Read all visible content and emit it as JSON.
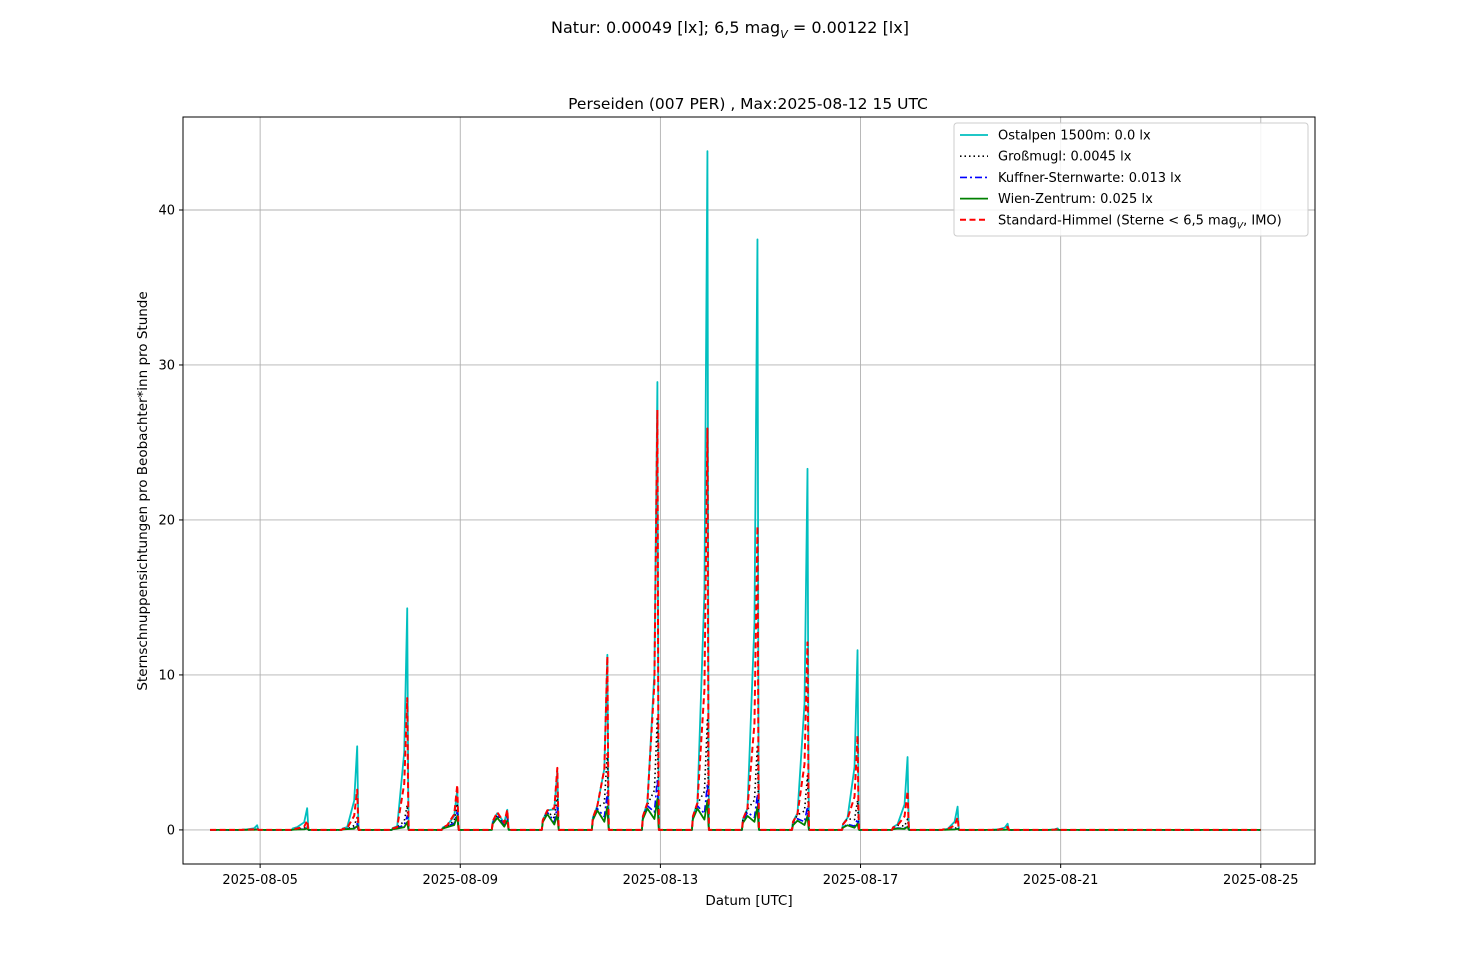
{
  "figure": {
    "suptitle": "Natur: 0.00049 [lx]; 6,5 mag",
    "suptitle_sub": "V",
    "suptitle_tail": " = 0.00122 [lx]"
  },
  "chart_data": {
    "type": "line",
    "title": "Perseiden (007 PER) , Max:2025-08-12 15 UTC",
    "xlabel": "Datum [UTC]",
    "ylabel": "Sternschnuppensichtungen pro Beobachter*inn pro Stunde",
    "x_start": "2025-08-04",
    "x_end": "2025-08-25",
    "xlim": [
      "2025-08-03 11:00",
      "2025-08-26 02:00"
    ],
    "ylim": [
      -2.2,
      46
    ],
    "xticks": [
      "2025-08-05",
      "2025-08-09",
      "2025-08-13",
      "2025-08-17",
      "2025-08-21",
      "2025-08-25"
    ],
    "yticks": [
      0,
      10,
      20,
      30,
      40
    ],
    "grid": true,
    "legend_position": "top-right",
    "series": [
      {
        "name": "Ostalpen 1500m: 0.0 lx",
        "color": "#00bfbf",
        "dash": "solid",
        "width": 1.8,
        "nights": [
          {
            "date": "2025-08-05",
            "peak": 0.3,
            "tail": 0.05
          },
          {
            "date": "2025-08-06",
            "peak": 1.4,
            "tail": 0.3
          },
          {
            "date": "2025-08-07",
            "peak": 5.4,
            "tail": 0.3
          },
          {
            "date": "2025-08-08",
            "peak": 14.3,
            "tail": 0.4
          },
          {
            "date": "2025-08-09",
            "peak": 2.6,
            "tail": 0.5
          },
          {
            "date": "2025-08-10",
            "peak": 1.3,
            "tail": 1.8
          },
          {
            "date": "2025-08-11",
            "peak": 3.8,
            "tail": 2.1
          },
          {
            "date": "2025-08-12",
            "peak": 11.3,
            "tail": 2.6
          },
          {
            "date": "2025-08-13",
            "peak": 28.9,
            "tail": 2.9
          },
          {
            "date": "2025-08-14",
            "peak": 43.8,
            "tail": 2.9
          },
          {
            "date": "2025-08-15",
            "peak": 38.1,
            "tail": 2.3
          },
          {
            "date": "2025-08-16",
            "peak": 23.3,
            "tail": 1.8
          },
          {
            "date": "2025-08-17",
            "peak": 11.6,
            "tail": 1.3
          },
          {
            "date": "2025-08-18",
            "peak": 4.7,
            "tail": 0.6
          },
          {
            "date": "2025-08-19",
            "peak": 1.5,
            "tail": 0.1
          },
          {
            "date": "2025-08-20",
            "peak": 0.4,
            "tail": 0.05
          },
          {
            "date": "2025-08-21",
            "peak": 0.1,
            "tail": 0.0
          }
        ]
      },
      {
        "name": "Großmugl: 0.0045 lx",
        "color": "#000000",
        "dash": "dotted",
        "width": 1.6,
        "nights": [
          {
            "date": "2025-08-05",
            "peak": 0.05,
            "tail": 0.02
          },
          {
            "date": "2025-08-06",
            "peak": 0.3,
            "tail": 0.1
          },
          {
            "date": "2025-08-07",
            "peak": 0.8,
            "tail": 0.1
          },
          {
            "date": "2025-08-08",
            "peak": 1.6,
            "tail": 0.3
          },
          {
            "date": "2025-08-09",
            "peak": 1.7,
            "tail": 0.4
          },
          {
            "date": "2025-08-10",
            "peak": 0.9,
            "tail": 1.6
          },
          {
            "date": "2025-08-11",
            "peak": 2.2,
            "tail": 2.0
          },
          {
            "date": "2025-08-12",
            "peak": 5.0,
            "tail": 2.4
          },
          {
            "date": "2025-08-13",
            "peak": 7.3,
            "tail": 2.7
          },
          {
            "date": "2025-08-14",
            "peak": 7.1,
            "tail": 2.8
          },
          {
            "date": "2025-08-15",
            "peak": 5.5,
            "tail": 2.2
          },
          {
            "date": "2025-08-16",
            "peak": 3.5,
            "tail": 1.6
          },
          {
            "date": "2025-08-17",
            "peak": 1.9,
            "tail": 1.2
          },
          {
            "date": "2025-08-18",
            "peak": 0.7,
            "tail": 0.5
          },
          {
            "date": "2025-08-19",
            "peak": 0.2,
            "tail": 0.05
          },
          {
            "date": "2025-08-20",
            "peak": 0.05,
            "tail": 0.0
          },
          {
            "date": "2025-08-21",
            "peak": 0.02,
            "tail": 0.0
          }
        ]
      },
      {
        "name": "Kuffner-Sternwarte: 0.013 lx",
        "color": "#0000ff",
        "dash": "dashdot",
        "width": 1.6,
        "nights": [
          {
            "date": "2025-08-05",
            "peak": 0.03,
            "tail": 0.01
          },
          {
            "date": "2025-08-06",
            "peak": 0.15,
            "tail": 0.05
          },
          {
            "date": "2025-08-07",
            "peak": 0.4,
            "tail": 0.1
          },
          {
            "date": "2025-08-08",
            "peak": 0.9,
            "tail": 0.2
          },
          {
            "date": "2025-08-09",
            "peak": 1.2,
            "tail": 0.4
          },
          {
            "date": "2025-08-10",
            "peak": 0.8,
            "tail": 1.5
          },
          {
            "date": "2025-08-11",
            "peak": 1.5,
            "tail": 1.9
          },
          {
            "date": "2025-08-12",
            "peak": 2.4,
            "tail": 2.3
          },
          {
            "date": "2025-08-13",
            "peak": 3.3,
            "tail": 2.6
          },
          {
            "date": "2025-08-14",
            "peak": 3.0,
            "tail": 2.6
          },
          {
            "date": "2025-08-15",
            "peak": 2.3,
            "tail": 1.9
          },
          {
            "date": "2025-08-16",
            "peak": 1.5,
            "tail": 1.2
          },
          {
            "date": "2025-08-17",
            "peak": 0.7,
            "tail": 0.6
          },
          {
            "date": "2025-08-18",
            "peak": 0.3,
            "tail": 0.2
          },
          {
            "date": "2025-08-19",
            "peak": 0.1,
            "tail": 0.02
          },
          {
            "date": "2025-08-20",
            "peak": 0.03,
            "tail": 0.0
          },
          {
            "date": "2025-08-21",
            "peak": 0.01,
            "tail": 0.0
          }
        ]
      },
      {
        "name": "Wien-Zentrum: 0.025 lx",
        "color": "#008000",
        "dash": "solid",
        "width": 1.8,
        "nights": [
          {
            "date": "2025-08-05",
            "peak": 0.02,
            "tail": 0.01
          },
          {
            "date": "2025-08-06",
            "peak": 0.1,
            "tail": 0.04
          },
          {
            "date": "2025-08-07",
            "peak": 0.25,
            "tail": 0.08
          },
          {
            "date": "2025-08-08",
            "peak": 0.5,
            "tail": 0.15
          },
          {
            "date": "2025-08-09",
            "peak": 0.9,
            "tail": 0.3
          },
          {
            "date": "2025-08-10",
            "peak": 0.6,
            "tail": 1.3
          },
          {
            "date": "2025-08-11",
            "peak": 1.0,
            "tail": 1.7
          },
          {
            "date": "2025-08-12",
            "peak": 1.5,
            "tail": 2.1
          },
          {
            "date": "2025-08-13",
            "peak": 2.0,
            "tail": 2.3
          },
          {
            "date": "2025-08-14",
            "peak": 1.9,
            "tail": 2.3
          },
          {
            "date": "2025-08-15",
            "peak": 1.5,
            "tail": 1.5
          },
          {
            "date": "2025-08-16",
            "peak": 0.9,
            "tail": 1.0
          },
          {
            "date": "2025-08-17",
            "peak": 0.4,
            "tail": 0.5
          },
          {
            "date": "2025-08-18",
            "peak": 0.2,
            "tail": 0.15
          },
          {
            "date": "2025-08-19",
            "peak": 0.07,
            "tail": 0.02
          },
          {
            "date": "2025-08-20",
            "peak": 0.02,
            "tail": 0.0
          },
          {
            "date": "2025-08-21",
            "peak": 0.01,
            "tail": 0.0
          }
        ]
      },
      {
        "name": "Standard-Himmel (Sterne  < 6,5 mag",
        "name_sub": "V",
        "name_tail": ", IMO)",
        "color": "#ff0000",
        "dash": "dashed",
        "width": 2.0,
        "nights": [
          {
            "date": "2025-08-05",
            "peak": 0.1,
            "tail": 0.03
          },
          {
            "date": "2025-08-06",
            "peak": 0.6,
            "tail": 0.15
          },
          {
            "date": "2025-08-07",
            "peak": 2.6,
            "tail": 0.2
          },
          {
            "date": "2025-08-08",
            "peak": 8.5,
            "tail": 0.3
          },
          {
            "date": "2025-08-09",
            "peak": 2.9,
            "tail": 0.5
          },
          {
            "date": "2025-08-10",
            "peak": 1.3,
            "tail": 1.9
          },
          {
            "date": "2025-08-11",
            "peak": 4.0,
            "tail": 2.1
          },
          {
            "date": "2025-08-12",
            "peak": 11.2,
            "tail": 2.6
          },
          {
            "date": "2025-08-13",
            "peak": 27.1,
            "tail": 2.9
          },
          {
            "date": "2025-08-14",
            "peak": 25.9,
            "tail": 2.9
          },
          {
            "date": "2025-08-15",
            "peak": 19.6,
            "tail": 2.3
          },
          {
            "date": "2025-08-16",
            "peak": 12.1,
            "tail": 1.7
          },
          {
            "date": "2025-08-17",
            "peak": 6.1,
            "tail": 1.2
          },
          {
            "date": "2025-08-18",
            "peak": 2.5,
            "tail": 0.5
          },
          {
            "date": "2025-08-19",
            "peak": 0.8,
            "tail": 0.1
          },
          {
            "date": "2025-08-20",
            "peak": 0.2,
            "tail": 0.03
          },
          {
            "date": "2025-08-21",
            "peak": 0.05,
            "tail": 0.0
          }
        ]
      }
    ]
  }
}
